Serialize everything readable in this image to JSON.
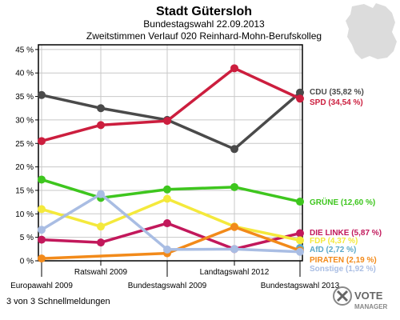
{
  "chart_data": {
    "type": "line",
    "title": "Stadt Gütersloh",
    "subtitle1": "Bundestagswahl 22.09.2013",
    "subtitle2": "Zweitstimmen Verlauf 020 Reinhard-Mohn-Berufskolleg",
    "categories": [
      "Europawahl 2009",
      "Ratswahl 2009",
      "Bundestagswahl 2009",
      "Landtagswahl 2012",
      "Bundestagswahl 2013"
    ],
    "yticks": [
      "0 %",
      "5 %",
      "10 %",
      "15 %",
      "20 %",
      "25 %",
      "30 %",
      "35 %",
      "40 %",
      "45 %"
    ],
    "ylim": [
      0,
      46
    ],
    "grid": true,
    "series": [
      {
        "name": "CDU",
        "label": "CDU (35,82 %)",
        "color": "#4a4a4a",
        "values": [
          35.3,
          32.5,
          30.0,
          23.8,
          35.82
        ]
      },
      {
        "name": "SPD",
        "label": "SPD (34,54 %)",
        "color": "#cc1e3e",
        "values": [
          25.5,
          28.9,
          29.8,
          41.0,
          34.54
        ]
      },
      {
        "name": "GRÜNE",
        "label": "GRÜNE (12,60 %)",
        "color": "#3ec61e",
        "values": [
          17.3,
          13.4,
          15.2,
          15.7,
          12.6
        ]
      },
      {
        "name": "DIE LINKE",
        "label": "DIE LINKE (5,87 %)",
        "color": "#c2185b",
        "values": [
          4.5,
          3.9,
          8.0,
          2.5,
          5.87
        ]
      },
      {
        "name": "FDP",
        "label": "FDP (4,37 %)",
        "color": "#f4e93c",
        "values": [
          11.0,
          7.3,
          13.2,
          7.3,
          4.37
        ]
      },
      {
        "name": "AfD",
        "label": "AfD (2,72 %)",
        "color": "#5ba9c9",
        "values": [
          null,
          null,
          null,
          null,
          2.72
        ]
      },
      {
        "name": "PIRATEN",
        "label": "PIRATEN (2,19 %)",
        "color": "#f28a1a",
        "values": [
          0.5,
          null,
          1.6,
          7.2,
          2.19
        ]
      },
      {
        "name": "Sonstige",
        "label": "Sonstige (1,92 %)",
        "color": "#a9bde3",
        "values": [
          6.6,
          14.2,
          2.4,
          2.5,
          1.92
        ]
      }
    ]
  },
  "footer": {
    "status": "3 von 3 Schnellmeldungen",
    "logo_line1": "VOTE",
    "logo_line2": "MANAGER"
  }
}
